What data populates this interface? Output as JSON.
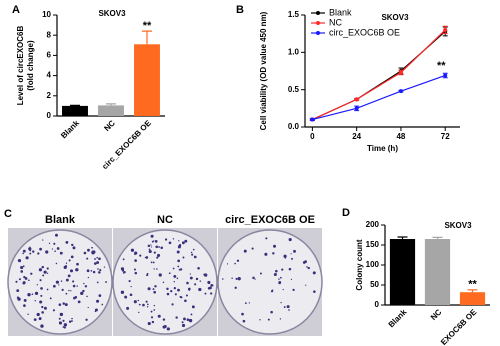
{
  "chart_data": [
    {
      "type": "bar",
      "panel": "A",
      "title": "SKOV3",
      "ylabel": [
        "Level of circEXOC6B",
        "(fold change)"
      ],
      "categories": [
        "Blank",
        "NC",
        "circ_EXOC6B OE"
      ],
      "values": [
        1.0,
        1.05,
        7.1
      ],
      "errors": [
        0.05,
        0.15,
        1.3
      ],
      "colors": [
        "#000000",
        "#a6a6a6",
        "#ff6a21"
      ],
      "ylim": [
        0,
        10
      ],
      "yticks": [
        0,
        2,
        4,
        6,
        8,
        10
      ],
      "annotations": [
        {
          "text": "**",
          "x": "circ_EXOC6B OE"
        }
      ]
    },
    {
      "type": "line",
      "panel": "B",
      "title": "SKOV3",
      "xlabel": "Time (h)",
      "ylabel": [
        "Cell viability (OD value 450 nm)"
      ],
      "x": [
        0,
        24,
        48,
        72
      ],
      "series": [
        {
          "name": "Blank",
          "color": "#000000",
          "values": [
            0.1,
            0.37,
            0.75,
            1.28
          ],
          "errors": [
            0.01,
            0.01,
            0.04,
            0.06
          ]
        },
        {
          "name": "NC",
          "color": "#ff2a2a",
          "values": [
            0.1,
            0.37,
            0.73,
            1.3
          ],
          "errors": [
            0.01,
            0.01,
            0.03,
            0.05
          ]
        },
        {
          "name": "circ_EXOC6B OE",
          "color": "#1a1aff",
          "values": [
            0.1,
            0.25,
            0.48,
            0.69
          ],
          "errors": [
            0.01,
            0.03,
            0.01,
            0.03
          ]
        }
      ],
      "xlim": [
        -4,
        80
      ],
      "xticks": [
        0,
        24,
        48,
        72
      ],
      "ylim": [
        0,
        1.5
      ],
      "yticks": [
        {
          "value": 0,
          "label": "0.0"
        },
        {
          "value": 0.5,
          "label": "0.5"
        },
        {
          "value": 1,
          "label": "1.0"
        },
        {
          "value": 1.5,
          "label": "1.5"
        }
      ],
      "legend": "upper left",
      "annotations": [
        {
          "text": "**",
          "x": 72
        }
      ]
    },
    {
      "type": "bar",
      "panel": "D",
      "title": "SKOV3",
      "ylabel": [
        "Colony count"
      ],
      "categories": [
        "Blank",
        "NC",
        "circ_EXOC6B OE"
      ],
      "values": [
        165,
        165,
        32
      ],
      "errors": [
        5,
        4,
        6
      ],
      "colors": [
        "#000000",
        "#a6a6a6",
        "#ff6a21"
      ],
      "ylim": [
        0,
        200
      ],
      "yticks": [
        0,
        50,
        100,
        150,
        200
      ],
      "annotations": [
        {
          "text": "**",
          "x": "circ_EXOC6B OE"
        }
      ]
    }
  ],
  "panel_c": {
    "panel": "C",
    "labels": [
      "Blank",
      "NC",
      "circ_EXOC6B OE"
    ]
  }
}
